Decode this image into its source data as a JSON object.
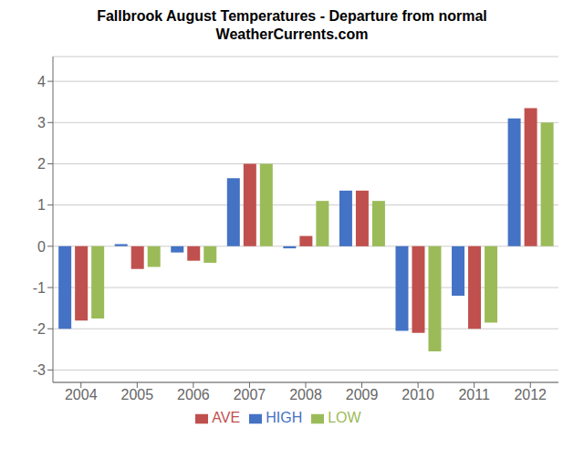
{
  "chart_data": {
    "type": "bar",
    "title": "Fallbrook August Temperatures - Departure from normal",
    "subtitle": "WeatherCurrents.com",
    "categories": [
      "2004",
      "2005",
      "2006",
      "2007",
      "2008",
      "2009",
      "2010",
      "2011",
      "2012"
    ],
    "series": [
      {
        "name": "HIGH",
        "color": "#4472C4",
        "values": [
          -2.0,
          0.05,
          -0.15,
          1.65,
          -0.05,
          1.35,
          -2.05,
          -1.2,
          3.1
        ]
      },
      {
        "name": "AVE",
        "color": "#C0504D",
        "values": [
          -1.8,
          -0.55,
          -0.35,
          2.0,
          0.25,
          1.35,
          -2.1,
          -2.0,
          3.35
        ]
      },
      {
        "name": "LOW",
        "color": "#9BBB59",
        "values": [
          -1.75,
          -0.5,
          -0.4,
          2.0,
          1.1,
          1.1,
          -2.55,
          -1.85,
          3.0
        ]
      }
    ],
    "ylim": [
      -3.3,
      4.6
    ],
    "yticks": [
      -3,
      -2,
      -1,
      0,
      1,
      2,
      3,
      4
    ],
    "grid": true,
    "legend": "bottom"
  }
}
